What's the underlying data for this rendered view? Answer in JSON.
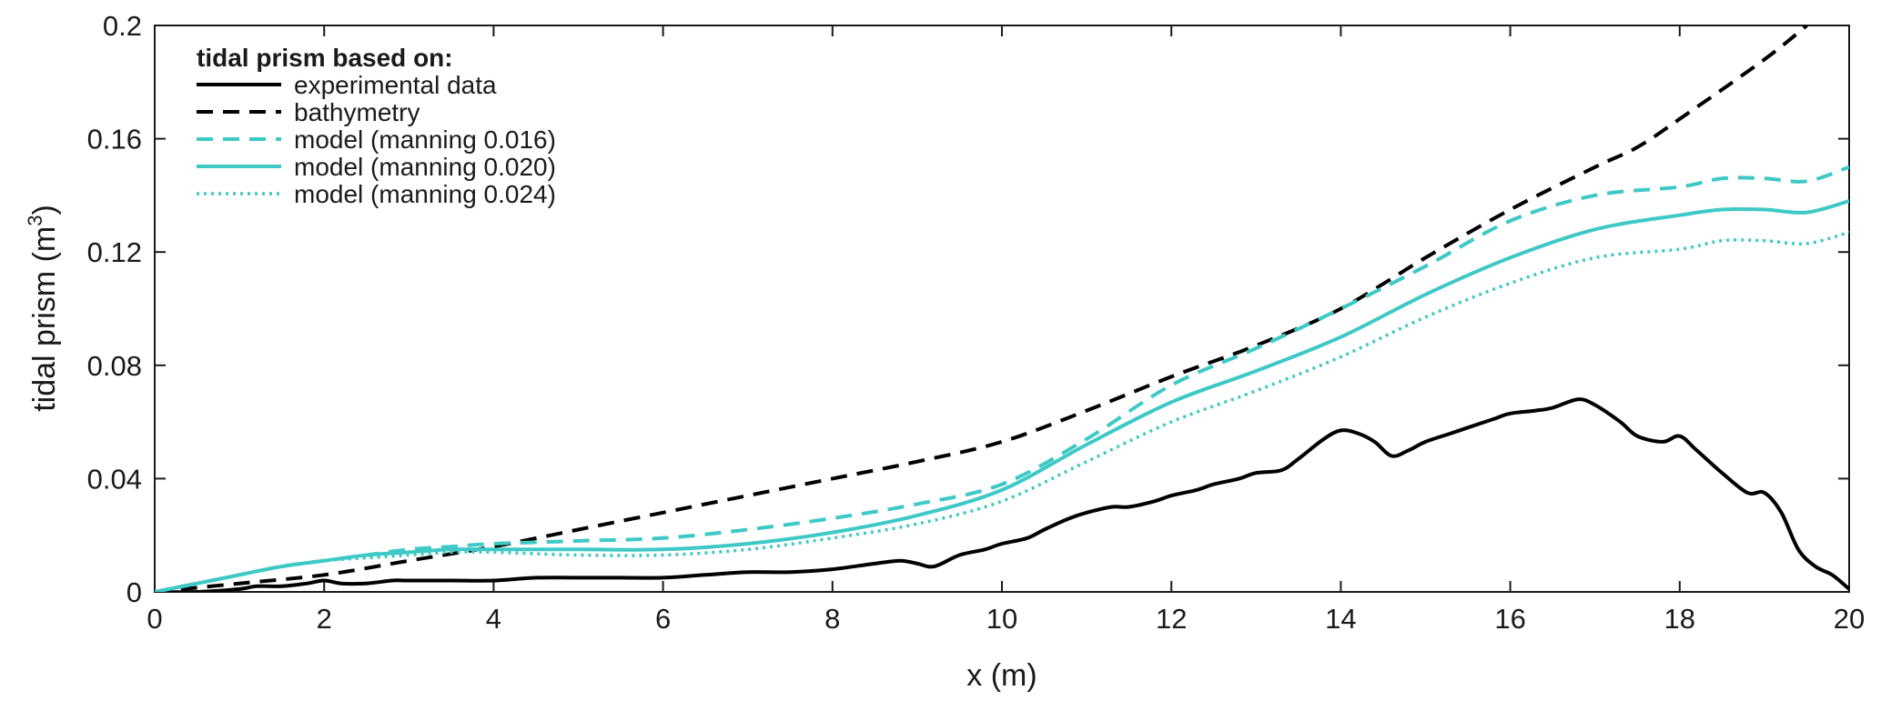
{
  "chart_data": {
    "type": "line",
    "xlabel": "x (m)",
    "ylabel": "tidal prism (m³)",
    "ylabel_main": "tidal prism (m",
    "ylabel_sup": "3",
    "ylabel_close": ")",
    "xlim": [
      0,
      20
    ],
    "ylim": [
      0,
      0.2
    ],
    "xticks": [
      0,
      2,
      4,
      6,
      8,
      10,
      12,
      14,
      16,
      18,
      20
    ],
    "xtick_labels": [
      "0",
      "2",
      "4",
      "6",
      "8",
      "10",
      "12",
      "14",
      "16",
      "18",
      "20"
    ],
    "yticks": [
      0,
      0.04,
      0.08,
      0.12,
      0.16,
      0.2
    ],
    "ytick_labels": [
      "0",
      "0.04",
      "0.08",
      "0.12",
      "0.16",
      "0.2"
    ],
    "grid": false,
    "legend": {
      "title": "tidal prism based on:",
      "placement": "top-left"
    },
    "series": [
      {
        "name": "experimental data",
        "color": "#000000",
        "style": "solid",
        "x": [
          0,
          0.5,
          1.0,
          1.2,
          1.5,
          1.8,
          2.0,
          2.2,
          2.5,
          2.8,
          3.0,
          3.5,
          4.0,
          4.5,
          5.0,
          5.5,
          6.0,
          6.5,
          7.0,
          7.5,
          8.0,
          8.5,
          8.8,
          9.0,
          9.2,
          9.5,
          9.8,
          10.0,
          10.3,
          10.5,
          10.8,
          11.0,
          11.3,
          11.5,
          11.8,
          12.0,
          12.3,
          12.5,
          12.8,
          13.0,
          13.3,
          13.5,
          13.8,
          14.0,
          14.2,
          14.4,
          14.6,
          14.8,
          15.0,
          15.3,
          15.5,
          15.8,
          16.0,
          16.3,
          16.5,
          16.8,
          17.0,
          17.3,
          17.5,
          17.8,
          18.0,
          18.2,
          18.5,
          18.8,
          19.0,
          19.2,
          19.4,
          19.6,
          19.8,
          20.0
        ],
        "values": [
          0,
          0,
          0.001,
          0.002,
          0.002,
          0.003,
          0.004,
          0.003,
          0.003,
          0.004,
          0.004,
          0.004,
          0.004,
          0.005,
          0.005,
          0.005,
          0.005,
          0.006,
          0.007,
          0.007,
          0.008,
          0.01,
          0.011,
          0.01,
          0.009,
          0.013,
          0.015,
          0.017,
          0.019,
          0.022,
          0.026,
          0.028,
          0.03,
          0.03,
          0.032,
          0.034,
          0.036,
          0.038,
          0.04,
          0.042,
          0.043,
          0.047,
          0.054,
          0.057,
          0.056,
          0.053,
          0.048,
          0.05,
          0.053,
          0.056,
          0.058,
          0.061,
          0.063,
          0.064,
          0.065,
          0.068,
          0.066,
          0.06,
          0.055,
          0.053,
          0.055,
          0.05,
          0.042,
          0.035,
          0.035,
          0.028,
          0.015,
          0.009,
          0.006,
          0.001
        ]
      },
      {
        "name": "bathymetry",
        "color": "#000000",
        "style": "dashed",
        "x": [
          0,
          1,
          2,
          3,
          4,
          5,
          6,
          7,
          8,
          9,
          10,
          11,
          12,
          13,
          14,
          15,
          16,
          17,
          17.5,
          18,
          19,
          19.5
        ],
        "values": [
          0,
          0.003,
          0.006,
          0.011,
          0.016,
          0.022,
          0.028,
          0.034,
          0.04,
          0.046,
          0.053,
          0.064,
          0.076,
          0.087,
          0.1,
          0.118,
          0.135,
          0.15,
          0.157,
          0.167,
          0.188,
          0.2
        ]
      },
      {
        "name": "model (manning 0.016)",
        "color": "#3ec9c6",
        "style": "dashed",
        "x": [
          0,
          0.5,
          1,
          1.5,
          2,
          2.5,
          3,
          3.5,
          4,
          5,
          6,
          7,
          8,
          9,
          10,
          11,
          12,
          13,
          14,
          15,
          16,
          17,
          18,
          18.5,
          19,
          19.5,
          20
        ],
        "values": [
          0,
          0.003,
          0.006,
          0.009,
          0.011,
          0.013,
          0.015,
          0.016,
          0.017,
          0.018,
          0.019,
          0.022,
          0.026,
          0.031,
          0.038,
          0.054,
          0.073,
          0.086,
          0.1,
          0.115,
          0.131,
          0.14,
          0.143,
          0.146,
          0.146,
          0.145,
          0.15
        ]
      },
      {
        "name": "model (manning 0.020)",
        "color": "#3ec9c6",
        "style": "solid",
        "x": [
          0,
          0.5,
          1,
          1.5,
          2,
          2.5,
          3,
          3.5,
          4,
          5,
          6,
          7,
          8,
          9,
          10,
          11,
          12,
          13,
          14,
          15,
          16,
          17,
          18,
          18.5,
          19,
          19.5,
          20
        ],
        "values": [
          0,
          0.003,
          0.006,
          0.009,
          0.011,
          0.013,
          0.014,
          0.015,
          0.015,
          0.015,
          0.015,
          0.017,
          0.021,
          0.027,
          0.036,
          0.052,
          0.067,
          0.078,
          0.09,
          0.105,
          0.118,
          0.128,
          0.133,
          0.135,
          0.135,
          0.134,
          0.138
        ]
      },
      {
        "name": "model (manning 0.024)",
        "color": "#3ec9c6",
        "style": "dotted",
        "x": [
          0,
          0.5,
          1,
          1.5,
          2,
          2.5,
          3,
          3.5,
          4,
          5,
          6,
          7,
          8,
          9,
          10,
          11,
          12,
          13,
          14,
          15,
          16,
          17,
          18,
          18.5,
          19,
          19.5,
          20
        ],
        "values": [
          0,
          0.003,
          0.006,
          0.009,
          0.011,
          0.012,
          0.013,
          0.014,
          0.014,
          0.013,
          0.013,
          0.015,
          0.019,
          0.024,
          0.032,
          0.046,
          0.06,
          0.071,
          0.083,
          0.097,
          0.109,
          0.118,
          0.121,
          0.124,
          0.124,
          0.123,
          0.127
        ]
      }
    ]
  }
}
